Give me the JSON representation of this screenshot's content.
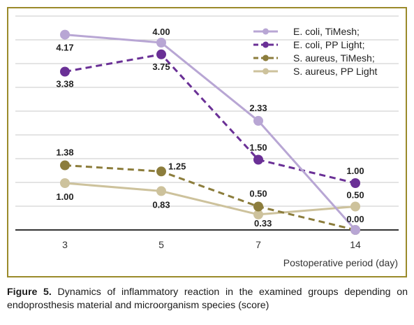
{
  "caption": {
    "label": "Figure 5.",
    "text": " Dynamics of inflammatory reaction in the examined groups depending on endoprosthesis material and microorganism species (score)"
  },
  "chart_data": {
    "type": "line",
    "categories": [
      "3",
      "5",
      "7",
      "14"
    ],
    "xlabel": "Postoperative period (day)",
    "ylabel": "",
    "ylim": [
      0,
      4.5
    ],
    "grid": true,
    "legend_position": "top-right",
    "series": [
      {
        "name": "E. coli, TiMesh;",
        "color": "#b8a6d4",
        "dashed": false,
        "values": [
          4.17,
          4.0,
          2.33,
          0.0
        ],
        "labels": [
          "4.17",
          "4.00",
          "2.33",
          "0.00"
        ]
      },
      {
        "name": "E. coli, PP Light;",
        "color": "#6a3096",
        "dashed": true,
        "values": [
          3.38,
          3.75,
          1.5,
          1.0
        ],
        "labels": [
          "3.38",
          "3.75",
          "1.50",
          "1.00"
        ]
      },
      {
        "name": "S. aureus, TiMesh;",
        "color": "#8c7d3c",
        "dashed": true,
        "values": [
          1.38,
          1.25,
          0.5,
          0.0
        ],
        "labels": [
          "1.38",
          "1.25",
          "0.50",
          ""
        ]
      },
      {
        "name": "S. aureus, PP Light",
        "color": "#cdc29c",
        "dashed": false,
        "values": [
          1.0,
          0.83,
          0.33,
          0.5
        ],
        "labels": [
          "1.00",
          "0.83",
          "0.33",
          "0.50"
        ]
      }
    ]
  }
}
